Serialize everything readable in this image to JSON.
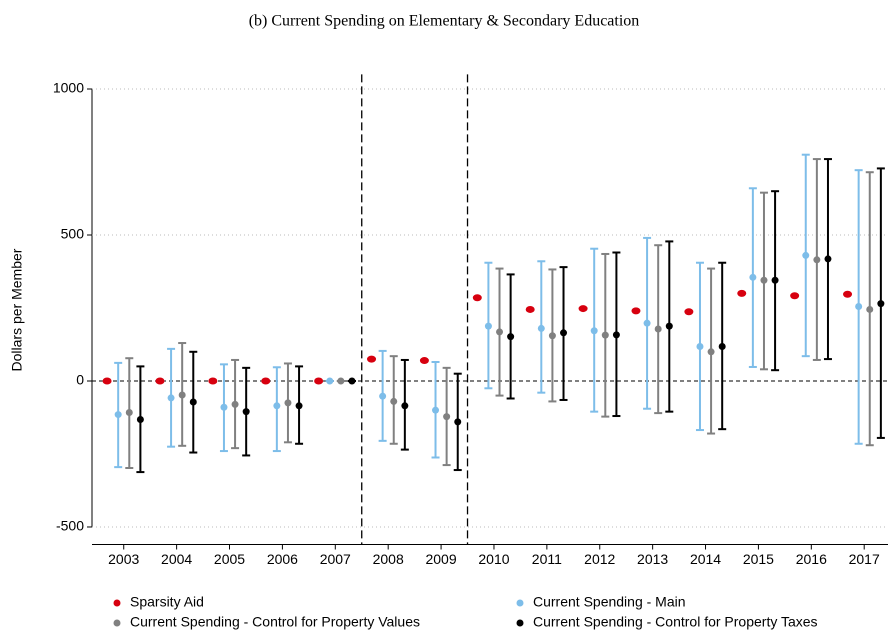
{
  "chart_data": {
    "type": "errorbar",
    "title": "(b) Current Spending on Elementary & Secondary Education",
    "y_label": "Dollars per Member",
    "x": [
      2003,
      2004,
      2005,
      2006,
      2007,
      2008,
      2009,
      2010,
      2011,
      2012,
      2013,
      2014,
      2015,
      2016,
      2017
    ],
    "xlim": [
      2002.4,
      2017.45
    ],
    "xticks": [
      2003,
      2004,
      2005,
      2006,
      2007,
      2008,
      2009,
      2010,
      2011,
      2012,
      2013,
      2014,
      2015,
      2016,
      2017
    ],
    "ylim": [
      -560,
      1050
    ],
    "yticks": [
      -500,
      0,
      500,
      1000
    ],
    "grid": true,
    "hline": 0,
    "vlines": [
      2007.5,
      2009.5
    ],
    "series": [
      {
        "name": "Sparsity Aid",
        "color": "#d7000f",
        "values": [
          0,
          0,
          0,
          0,
          0,
          75,
          70,
          285,
          245,
          248,
          240,
          237,
          300,
          292,
          297
        ]
      },
      {
        "name": "Current Spending - Main",
        "color": "#7dbde9",
        "values": [
          -115,
          -58,
          -90,
          -85,
          0,
          -52,
          -100,
          188,
          180,
          172,
          198,
          118,
          355,
          430,
          255
        ],
        "lower": [
          -295,
          -225,
          -240,
          -240,
          0,
          -205,
          -262,
          -25,
          -40,
          -105,
          -95,
          -168,
          48,
          85,
          -215
        ],
        "upper": [
          62,
          110,
          57,
          47,
          0,
          103,
          65,
          405,
          410,
          453,
          490,
          405,
          660,
          775,
          722
        ]
      },
      {
        "name": "Current Spending - Control for Property Values",
        "color": "#808080",
        "values": [
          -108,
          -48,
          -80,
          -75,
          0,
          -70,
          -122,
          168,
          155,
          157,
          178,
          100,
          345,
          415,
          245
        ],
        "lower": [
          -298,
          -222,
          -230,
          -210,
          0,
          -215,
          -288,
          -50,
          -70,
          -122,
          -110,
          -180,
          40,
          72,
          -220
        ],
        "upper": [
          78,
          130,
          72,
          60,
          0,
          85,
          45,
          385,
          382,
          435,
          465,
          385,
          645,
          760,
          715
        ]
      },
      {
        "name": "Current Spending - Control for Property Taxes",
        "color": "#000000",
        "values": [
          -132,
          -72,
          -105,
          -85,
          0,
          -85,
          -140,
          152,
          165,
          158,
          188,
          118,
          345,
          418,
          265
        ],
        "lower": [
          -312,
          -245,
          -255,
          -215,
          0,
          -235,
          -305,
          -60,
          -65,
          -120,
          -105,
          -165,
          37,
          75,
          -195
        ],
        "upper": [
          50,
          100,
          45,
          50,
          0,
          72,
          25,
          365,
          390,
          440,
          478,
          405,
          650,
          760,
          728
        ]
      }
    ]
  }
}
